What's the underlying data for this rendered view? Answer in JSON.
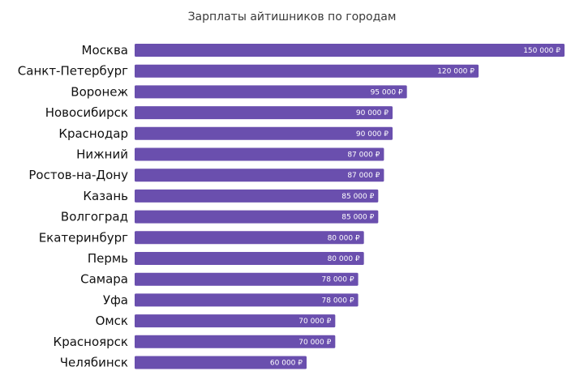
{
  "chart_data": {
    "type": "bar",
    "orientation": "horizontal",
    "title": "Зарплаты айтишников по городам",
    "xlabel": "",
    "ylabel": "",
    "categories": [
      "Москва",
      "Санкт-Петербург",
      "Воронеж",
      "Новосибирск",
      "Краснодар",
      "Нижний",
      "Ростов-на-Дону",
      "Казань",
      "Волгоград",
      "Екатеринбург",
      "Пермь",
      "Самара",
      "Уфа",
      "Омск",
      "Красноярск",
      "Челябинск"
    ],
    "values": [
      150000,
      120000,
      95000,
      90000,
      90000,
      87000,
      87000,
      85000,
      85000,
      80000,
      80000,
      78000,
      78000,
      70000,
      70000,
      60000
    ],
    "value_labels": [
      "150 000 ₽",
      "120 000 ₽",
      "95 000 ₽",
      "90 000 ₽",
      "90 000 ₽",
      "87 000 ₽",
      "87 000 ₽",
      "85 000 ₽",
      "85 000 ₽",
      "80 000 ₽",
      "80 000 ₽",
      "78 000 ₽",
      "78 000 ₽",
      "70 000 ₽",
      "70 000 ₽",
      "60 000 ₽"
    ],
    "xlim": [
      0,
      150000
    ],
    "grid": false,
    "legend": "none",
    "colors": {
      "bar": "#6a4fae",
      "bar_label_text": "#ffffff",
      "category_text": "#111111",
      "title_text": "#3a3a3a"
    }
  }
}
